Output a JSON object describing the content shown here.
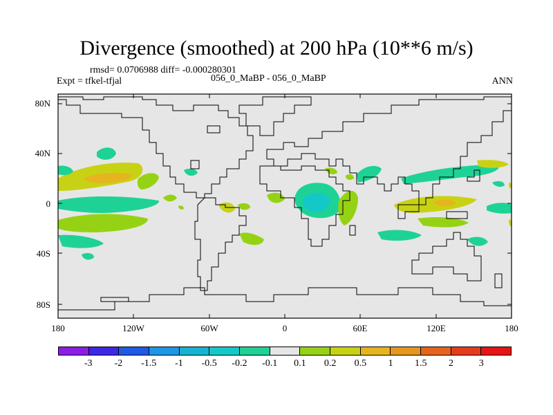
{
  "title": "Divergence (smoothed) at 200 hPa (10**6 m/s)",
  "stats_line": "rmsd= 0.0706988 diff= -0.000280301",
  "experiment": "Expt = tfkel-tfjal",
  "cases": "056_0_MaBP - 056_0_MaBP",
  "period": "ANN",
  "lat_ticks": [
    {
      "label": "80N",
      "value": 80
    },
    {
      "label": "40N",
      "value": 40
    },
    {
      "label": "0",
      "value": 0
    },
    {
      "label": "40S",
      "value": -40
    },
    {
      "label": "80S",
      "value": -80
    }
  ],
  "lon_ticks": [
    {
      "label": "180",
      "value": -180
    },
    {
      "label": "120W",
      "value": -120
    },
    {
      "label": "60W",
      "value": -60
    },
    {
      "label": "0",
      "value": 0
    },
    {
      "label": "60E",
      "value": 60
    },
    {
      "label": "120E",
      "value": 120
    },
    {
      "label": "180",
      "value": 180
    }
  ],
  "colorbar": {
    "colors": [
      "#8b1ee6",
      "#3c28e6",
      "#1e5ae6",
      "#1e96e6",
      "#14b4d2",
      "#14c8c8",
      "#1ed296",
      "#e6e6e6",
      "#96d214",
      "#c8d214",
      "#e6b41e",
      "#e6961e",
      "#e6641e",
      "#e63c1e",
      "#e61414"
    ],
    "labels": [
      "-3",
      "-2",
      "-1.5",
      "-1",
      "-0.5",
      "-0.2",
      "-0.1",
      "0.1",
      "0.2",
      "0.5",
      "1",
      "1.5",
      "2",
      "3"
    ]
  },
  "map": {
    "background": "#e6e6e6",
    "lon_range": [
      -180,
      180
    ],
    "lat_range": [
      -90,
      90
    ]
  }
}
